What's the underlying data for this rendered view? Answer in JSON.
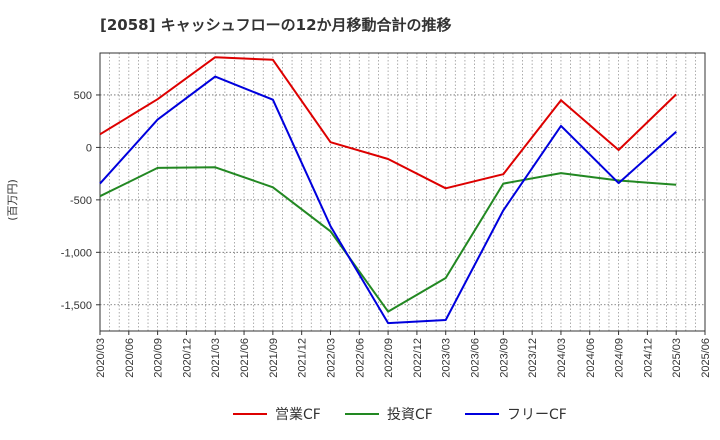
{
  "chart_data": {
    "type": "line",
    "title": "[2058]  キャッシュフローの12か月移動合計の推移",
    "ylabel": "(百万円)",
    "xlabel": "",
    "ylim": [
      -1750,
      900
    ],
    "yticks": [
      500,
      0,
      -500,
      -1000,
      -1500
    ],
    "ytick_labels": [
      "500",
      "0",
      "-500",
      "-1,000",
      "-1,500"
    ],
    "xlim": [
      "2020/03",
      "2025/06"
    ],
    "xtick_labels": [
      "2020/03",
      "2020/06",
      "2020/09",
      "2020/12",
      "2021/03",
      "2021/06",
      "2021/09",
      "2021/12",
      "2022/03",
      "2022/06",
      "2022/09",
      "2022/12",
      "2023/03",
      "2023/06",
      "2023/09",
      "2023/12",
      "2024/03",
      "2024/06",
      "2024/09",
      "2024/12",
      "2025/03",
      "2025/06"
    ],
    "x": [
      "2020/03",
      "2020/09",
      "2021/03",
      "2021/09",
      "2022/03",
      "2022/09",
      "2023/03",
      "2023/09",
      "2024/03",
      "2024/09",
      "2025/03"
    ],
    "grid": true,
    "legend_position": "bottom",
    "series": [
      {
        "name": "営業CF",
        "color": "#dd0000",
        "values": [
          125,
          460,
          860,
          835,
          50,
          -110,
          -390,
          -255,
          450,
          -25,
          505
        ]
      },
      {
        "name": "投資CF",
        "color": "#228822",
        "values": [
          -465,
          -195,
          -190,
          -380,
          -800,
          -1565,
          -1245,
          -345,
          -245,
          -315,
          -355
        ]
      },
      {
        "name": "フリーCF",
        "color": "#0000dd",
        "values": [
          -345,
          265,
          675,
          455,
          -750,
          -1675,
          -1645,
          -600,
          205,
          -340,
          150
        ]
      }
    ]
  }
}
